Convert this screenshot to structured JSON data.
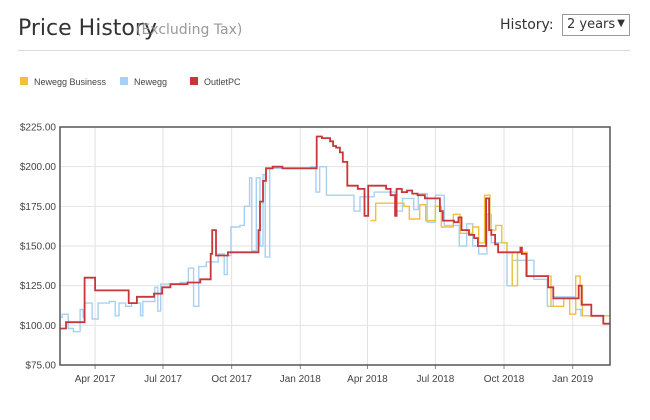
{
  "header": {
    "title": "Price History",
    "subtitle": "(Excluding Tax)",
    "history_label": "History:",
    "history_value": "2 years"
  },
  "chart_data": {
    "type": "line",
    "step": true,
    "legend_position": "top-left",
    "grid": true,
    "ylim": [
      75,
      225
    ],
    "y_ticks": [
      75,
      100,
      125,
      150,
      175,
      200,
      225
    ],
    "y_tick_labels": [
      "$75.00",
      "$100.00",
      "$125.00",
      "$150.00",
      "$175.00",
      "$200.00",
      "$225.00"
    ],
    "x_range": [
      "2017-02-13",
      "2019-02-20"
    ],
    "x_ticks": [
      "2017-04-01",
      "2017-07-01",
      "2017-10-01",
      "2018-01-01",
      "2018-04-01",
      "2018-07-01",
      "2018-10-01",
      "2019-01-01"
    ],
    "x_tick_labels": [
      "Apr 2017",
      "Jul 2017",
      "Oct 2017",
      "Jan 2018",
      "Apr 2018",
      "Jul 2018",
      "Oct 2018",
      "Jan 2019"
    ],
    "series": [
      {
        "name": "Newegg Business",
        "color": "#f0c03c",
        "points": [
          [
            "2018-04-05",
            166
          ],
          [
            "2018-04-12",
            177
          ],
          [
            "2018-05-20",
            175
          ],
          [
            "2018-05-27",
            167
          ],
          [
            "2018-06-10",
            176
          ],
          [
            "2018-06-18",
            166
          ],
          [
            "2018-07-01",
            175
          ],
          [
            "2018-07-09",
            162
          ],
          [
            "2018-07-25",
            170
          ],
          [
            "2018-08-03",
            158
          ],
          [
            "2018-08-20",
            162
          ],
          [
            "2018-08-28",
            152
          ],
          [
            "2018-09-05",
            182
          ],
          [
            "2018-09-12",
            160
          ],
          [
            "2018-09-20",
            163
          ],
          [
            "2018-09-28",
            152
          ],
          [
            "2018-10-05",
            146
          ],
          [
            "2018-10-12",
            125
          ],
          [
            "2018-10-19",
            146
          ],
          [
            "2018-11-01",
            131
          ],
          [
            "2018-11-28",
            131
          ],
          [
            "2018-12-03",
            112
          ],
          [
            "2018-12-20",
            117
          ],
          [
            "2018-12-28",
            107
          ],
          [
            "2019-01-05",
            131
          ],
          [
            "2019-01-11",
            125
          ],
          [
            "2019-01-14",
            106
          ]
        ]
      },
      {
        "name": "Newegg",
        "color": "#a8d0f2",
        "points": [
          [
            "2017-02-13",
            105
          ],
          [
            "2017-02-16",
            107
          ],
          [
            "2017-02-24",
            98
          ],
          [
            "2017-03-03",
            96
          ],
          [
            "2017-03-12",
            110
          ],
          [
            "2017-03-16",
            105
          ],
          [
            "2017-03-18",
            114
          ],
          [
            "2017-03-28",
            104
          ],
          [
            "2017-04-05",
            114
          ],
          [
            "2017-04-20",
            115
          ],
          [
            "2017-04-28",
            106
          ],
          [
            "2017-05-03",
            114
          ],
          [
            "2017-05-12",
            112
          ],
          [
            "2017-05-20",
            114
          ],
          [
            "2017-06-01",
            106
          ],
          [
            "2017-06-04",
            115
          ],
          [
            "2017-06-20",
            124
          ],
          [
            "2017-06-24",
            109
          ],
          [
            "2017-06-28",
            126
          ],
          [
            "2017-07-24",
            127
          ],
          [
            "2017-08-04",
            136
          ],
          [
            "2017-08-11",
            112
          ],
          [
            "2017-08-18",
            137
          ],
          [
            "2017-08-28",
            140
          ],
          [
            "2017-09-13",
            145
          ],
          [
            "2017-09-21",
            132
          ],
          [
            "2017-09-25",
            144
          ],
          [
            "2017-09-30",
            162
          ],
          [
            "2017-10-12",
            163
          ],
          [
            "2017-10-18",
            175
          ],
          [
            "2017-10-25",
            193
          ],
          [
            "2017-10-28",
            147
          ],
          [
            "2017-11-03",
            193
          ],
          [
            "2017-11-08",
            150
          ],
          [
            "2017-11-12",
            195
          ],
          [
            "2017-11-15",
            143
          ],
          [
            "2017-11-18",
            143
          ],
          [
            "2017-11-21",
            199
          ],
          [
            "2018-01-15",
            200
          ],
          [
            "2018-01-22",
            184
          ],
          [
            "2018-01-27",
            200
          ],
          [
            "2018-02-05",
            182
          ],
          [
            "2018-03-08",
            182
          ],
          [
            "2018-03-14",
            172
          ],
          [
            "2018-03-22",
            181
          ],
          [
            "2018-04-10",
            184
          ],
          [
            "2018-05-08",
            172
          ],
          [
            "2018-05-18",
            180
          ],
          [
            "2018-06-02",
            173
          ],
          [
            "2018-06-08",
            183
          ],
          [
            "2018-06-20",
            165
          ],
          [
            "2018-07-01",
            182
          ],
          [
            "2018-07-13",
            163
          ],
          [
            "2018-08-02",
            150
          ],
          [
            "2018-08-12",
            164
          ],
          [
            "2018-08-20",
            150
          ],
          [
            "2018-08-28",
            145
          ],
          [
            "2018-09-08",
            170
          ],
          [
            "2018-09-14",
            152
          ],
          [
            "2018-10-05",
            125
          ],
          [
            "2018-10-12",
            141
          ],
          [
            "2018-11-10",
            129
          ],
          [
            "2018-11-28",
            112
          ],
          [
            "2018-12-06",
            118
          ],
          [
            "2019-01-05",
            110
          ],
          [
            "2019-01-12",
            106
          ]
        ]
      },
      {
        "name": "OutletPC",
        "color": "#c8363a",
        "points": [
          [
            "2017-02-13",
            98
          ],
          [
            "2017-02-21",
            102
          ],
          [
            "2017-03-18",
            130
          ],
          [
            "2017-04-01",
            122
          ],
          [
            "2017-04-25",
            122
          ],
          [
            "2017-05-16",
            114
          ],
          [
            "2017-05-27",
            118
          ],
          [
            "2017-06-07",
            118
          ],
          [
            "2017-06-19",
            120
          ],
          [
            "2017-06-30",
            124
          ],
          [
            "2017-07-11",
            126
          ],
          [
            "2017-08-03",
            127
          ],
          [
            "2017-08-20",
            129
          ],
          [
            "2017-09-03",
            145
          ],
          [
            "2017-09-05",
            160
          ],
          [
            "2017-09-10",
            144
          ],
          [
            "2017-09-26",
            146
          ],
          [
            "2017-11-06",
            160
          ],
          [
            "2017-11-08",
            178
          ],
          [
            "2017-11-12",
            191
          ],
          [
            "2017-11-16",
            199
          ],
          [
            "2017-11-25",
            200
          ],
          [
            "2017-12-08",
            199
          ],
          [
            "2018-01-23",
            219
          ],
          [
            "2018-01-30",
            218
          ],
          [
            "2018-02-10",
            216
          ],
          [
            "2018-02-14",
            213
          ],
          [
            "2018-02-18",
            212
          ],
          [
            "2018-02-23",
            209
          ],
          [
            "2018-02-27",
            203
          ],
          [
            "2018-03-05",
            188
          ],
          [
            "2018-03-19",
            186
          ],
          [
            "2018-03-28",
            169
          ],
          [
            "2018-04-02",
            188
          ],
          [
            "2018-04-26",
            186
          ],
          [
            "2018-05-02",
            182
          ],
          [
            "2018-05-08",
            169
          ],
          [
            "2018-05-10",
            186
          ],
          [
            "2018-05-17",
            184
          ],
          [
            "2018-05-24",
            185
          ],
          [
            "2018-05-31",
            183
          ],
          [
            "2018-06-07",
            182
          ],
          [
            "2018-06-17",
            180
          ],
          [
            "2018-07-01",
            180
          ],
          [
            "2018-07-07",
            172
          ],
          [
            "2018-07-11",
            166
          ],
          [
            "2018-07-26",
            165
          ],
          [
            "2018-08-01",
            168
          ],
          [
            "2018-08-05",
            160
          ],
          [
            "2018-08-15",
            157
          ],
          [
            "2018-08-22",
            155
          ],
          [
            "2018-08-27",
            150
          ],
          [
            "2018-09-07",
            180
          ],
          [
            "2018-09-11",
            160
          ],
          [
            "2018-09-14",
            157
          ],
          [
            "2018-09-19",
            151
          ],
          [
            "2018-09-23",
            146
          ],
          [
            "2018-10-23",
            149
          ],
          [
            "2018-10-25",
            145
          ],
          [
            "2018-10-31",
            131
          ],
          [
            "2018-11-29",
            124
          ],
          [
            "2018-12-06",
            117
          ],
          [
            "2019-01-09",
            125
          ],
          [
            "2019-01-13",
            113
          ],
          [
            "2019-01-26",
            106
          ],
          [
            "2019-02-11",
            101
          ]
        ]
      }
    ]
  }
}
